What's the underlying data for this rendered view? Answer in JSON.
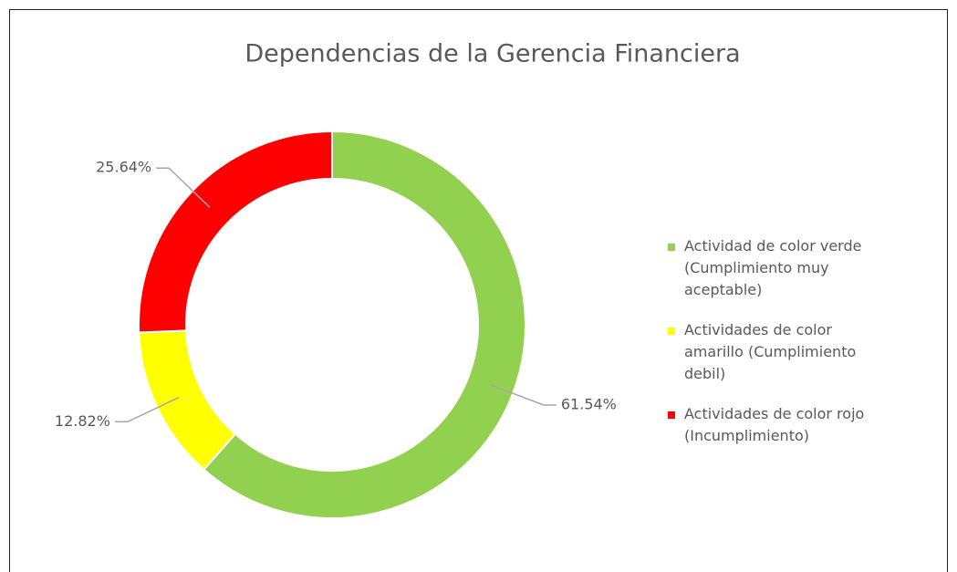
{
  "chart_data": {
    "type": "donut",
    "title": "Dependencias de la Gerencia Financiera",
    "categories": [
      "Actividad de color verde (Cumplimiento muy aceptable)",
      "Actividades de color amarillo (Cumplimiento debil)",
      "Actividades de color rojo (Incumplimiento)"
    ],
    "values": [
      61.54,
      12.82,
      25.64
    ],
    "value_labels": [
      "61.54%",
      "12.82%",
      "25.64%"
    ],
    "colors": [
      "#92d050",
      "#ffff00",
      "#ff0000"
    ],
    "legend": "right"
  }
}
